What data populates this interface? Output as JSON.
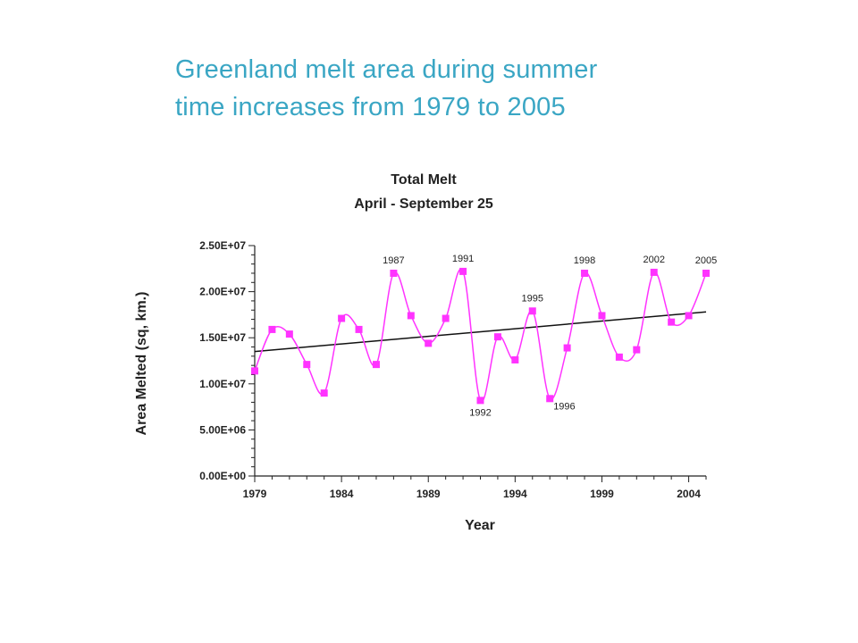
{
  "slide": {
    "title_line1": "Greenland melt area during summer",
    "title_line2": "time increases from 1979 to 2005"
  },
  "colors": {
    "title": "#3aa6c4",
    "series": "#ff33ff",
    "trend": "#111111",
    "axis": "#222222"
  },
  "chart_data": {
    "type": "line",
    "title": "Total Melt",
    "subtitle": "April - September 25",
    "xlabel": "Year",
    "ylabel": "Area Melted (sq, km.)",
    "xlim": [
      1979,
      2005
    ],
    "ylim": [
      0,
      25000000
    ],
    "x_ticks": [
      1979,
      1984,
      1989,
      1994,
      1999,
      2004
    ],
    "x_tick_labels": [
      "1979",
      "1984",
      "1989",
      "1994",
      "1999",
      "2004"
    ],
    "y_ticks": [
      0,
      5000000,
      10000000,
      15000000,
      20000000,
      25000000
    ],
    "y_tick_labels": [
      "0.00E+00",
      "5.00E+06",
      "1.00E+07",
      "1.50E+07",
      "2.00E+07",
      "2.50E+07"
    ],
    "grid": false,
    "series": [
      {
        "x": [
          1979,
          1980,
          1981,
          1982,
          1983,
          1984,
          1985,
          1986,
          1987,
          1988,
          1989,
          1990,
          1991,
          1992,
          1993,
          1994,
          1995,
          1996,
          1997,
          1998,
          1999,
          2000,
          2001,
          2002,
          2003,
          2004,
          2005
        ],
        "values": [
          11400000,
          15900000,
          15400000,
          12100000,
          9000000,
          17100000,
          15900000,
          12100000,
          22000000,
          17400000,
          14400000,
          17100000,
          22200000,
          8200000,
          15100000,
          12600000,
          17900000,
          8400000,
          13900000,
          22000000,
          17400000,
          12900000,
          13700000,
          22100000,
          16700000,
          17400000,
          22000000
        ]
      },
      {
        "name": "trend",
        "x": [
          1979,
          2005
        ],
        "values": [
          13500000,
          17800000
        ]
      }
    ],
    "annotations": [
      {
        "text": "1987",
        "x": 1987,
        "y": 22000000,
        "pos": "above"
      },
      {
        "text": "1991",
        "x": 1991,
        "y": 22200000,
        "pos": "above"
      },
      {
        "text": "1992",
        "x": 1992,
        "y": 8200000,
        "pos": "below"
      },
      {
        "text": "1995",
        "x": 1995,
        "y": 17900000,
        "pos": "above"
      },
      {
        "text": "1996",
        "x": 1996,
        "y": 8400000,
        "pos": "below-right"
      },
      {
        "text": "1998",
        "x": 1998,
        "y": 22000000,
        "pos": "above"
      },
      {
        "text": "2002",
        "x": 2002,
        "y": 22100000,
        "pos": "above"
      },
      {
        "text": "2005",
        "x": 2005,
        "y": 22000000,
        "pos": "above"
      }
    ]
  }
}
